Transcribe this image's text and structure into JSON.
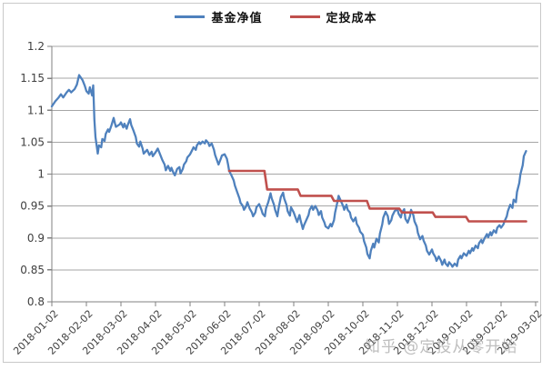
{
  "watermark": "知乎 @定投从零开始",
  "chart_data": {
    "type": "line",
    "title": "",
    "xlabel": "",
    "ylabel": "",
    "ylim": [
      0.8,
      1.2
    ],
    "x_range": [
      "2018-01-02",
      "2019-03-02"
    ],
    "grid": "horizontal",
    "grid_color": "#a6a6a6",
    "axis_color": "#808080",
    "tick_label_color": "#3f3f3f",
    "legend_position": "top-center",
    "x_tick_labels_rotated_45": true,
    "y_ticks": [
      {
        "v": 0.8,
        "label": "0.8"
      },
      {
        "v": 0.85,
        "label": "0.85"
      },
      {
        "v": 0.9,
        "label": "0.9"
      },
      {
        "v": 0.95,
        "label": "0.95"
      },
      {
        "v": 1.0,
        "label": "1"
      },
      {
        "v": 1.05,
        "label": "1.05"
      },
      {
        "v": 1.1,
        "label": "1.1"
      },
      {
        "v": 1.15,
        "label": "1.15"
      },
      {
        "v": 1.2,
        "label": "1.2"
      }
    ],
    "x_ticks": [
      "2018-01-02",
      "2018-02-02",
      "2018-03-02",
      "2018-04-02",
      "2018-05-02",
      "2018-06-02",
      "2018-07-02",
      "2018-08-02",
      "2018-09-02",
      "2018-10-02",
      "2018-11-02",
      "2018-12-02",
      "2019-01-02",
      "2019-02-02",
      "2019-03-02"
    ],
    "series": [
      {
        "name": "基金净值",
        "color": "#4f81bd",
        "style": "line",
        "points": [
          [
            "2018-01-02",
            1.106
          ],
          [
            "2018-01-05",
            1.114
          ],
          [
            "2018-01-08",
            1.12
          ],
          [
            "2018-01-10",
            1.125
          ],
          [
            "2018-01-12",
            1.12
          ],
          [
            "2018-01-15",
            1.128
          ],
          [
            "2018-01-17",
            1.132
          ],
          [
            "2018-01-19",
            1.128
          ],
          [
            "2018-01-22",
            1.133
          ],
          [
            "2018-01-24",
            1.14
          ],
          [
            "2018-01-26",
            1.155
          ],
          [
            "2018-01-29",
            1.147
          ],
          [
            "2018-01-31",
            1.138
          ],
          [
            "2018-02-02",
            1.13
          ],
          [
            "2018-02-04",
            1.126
          ],
          [
            "2018-02-05",
            1.136
          ],
          [
            "2018-02-07",
            1.123
          ],
          [
            "2018-02-08",
            1.139
          ],
          [
            "2018-02-09",
            1.085
          ],
          [
            "2018-02-10",
            1.058
          ],
          [
            "2018-02-12",
            1.032
          ],
          [
            "2018-02-13",
            1.045
          ],
          [
            "2018-02-15",
            1.042
          ],
          [
            "2018-02-16",
            1.055
          ],
          [
            "2018-02-18",
            1.052
          ],
          [
            "2018-02-19",
            1.063
          ],
          [
            "2018-02-21",
            1.07
          ],
          [
            "2018-02-22",
            1.066
          ],
          [
            "2018-02-24",
            1.076
          ],
          [
            "2018-02-26",
            1.088
          ],
          [
            "2018-02-27",
            1.08
          ],
          [
            "2018-02-28",
            1.074
          ],
          [
            "2018-03-01",
            1.078
          ],
          [
            "2018-03-02",
            1.081
          ],
          [
            "2018-03-04",
            1.073
          ],
          [
            "2018-03-05",
            1.079
          ],
          [
            "2018-03-07",
            1.071
          ],
          [
            "2018-03-08",
            1.077
          ],
          [
            "2018-03-10",
            1.086
          ],
          [
            "2018-03-11",
            1.077
          ],
          [
            "2018-03-13",
            1.068
          ],
          [
            "2018-03-15",
            1.058
          ],
          [
            "2018-03-16",
            1.048
          ],
          [
            "2018-03-18",
            1.043
          ],
          [
            "2018-03-19",
            1.051
          ],
          [
            "2018-03-21",
            1.04
          ],
          [
            "2018-03-22",
            1.032
          ],
          [
            "2018-03-25",
            1.038
          ],
          [
            "2018-03-27",
            1.03
          ],
          [
            "2018-03-29",
            1.035
          ],
          [
            "2018-03-30",
            1.028
          ],
          [
            "2018-04-02",
            1.034
          ],
          [
            "2018-04-04",
            1.04
          ],
          [
            "2018-04-06",
            1.031
          ],
          [
            "2018-04-08",
            1.022
          ],
          [
            "2018-04-10",
            1.015
          ],
          [
            "2018-04-11",
            1.006
          ],
          [
            "2018-04-13",
            1.013
          ],
          [
            "2018-04-15",
            1.005
          ],
          [
            "2018-04-16",
            1.01
          ],
          [
            "2018-04-18",
            1.001
          ],
          [
            "2018-04-19",
            0.998
          ],
          [
            "2018-04-21",
            1.008
          ],
          [
            "2018-04-23",
            1.011
          ],
          [
            "2018-04-24",
            1.001
          ],
          [
            "2018-04-26",
            1.008
          ],
          [
            "2018-04-27",
            1.015
          ],
          [
            "2018-04-29",
            1.02
          ],
          [
            "2018-04-30",
            1.026
          ],
          [
            "2018-05-02",
            1.031
          ],
          [
            "2018-05-04",
            1.038
          ],
          [
            "2018-05-05",
            1.042
          ],
          [
            "2018-05-07",
            1.038
          ],
          [
            "2018-05-08",
            1.045
          ],
          [
            "2018-05-10",
            1.05
          ],
          [
            "2018-05-11",
            1.047
          ],
          [
            "2018-05-13",
            1.051
          ],
          [
            "2018-05-15",
            1.048
          ],
          [
            "2018-05-16",
            1.053
          ],
          [
            "2018-05-18",
            1.049
          ],
          [
            "2018-05-19",
            1.044
          ],
          [
            "2018-05-21",
            1.048
          ],
          [
            "2018-05-23",
            1.038
          ],
          [
            "2018-05-24",
            1.03
          ],
          [
            "2018-05-26",
            1.02
          ],
          [
            "2018-05-27",
            1.015
          ],
          [
            "2018-05-29",
            1.024
          ],
          [
            "2018-05-30",
            1.029
          ],
          [
            "2018-06-02",
            1.031
          ],
          [
            "2018-06-04",
            1.024
          ],
          [
            "2018-06-05",
            1.015
          ],
          [
            "2018-06-06",
            1.005
          ],
          [
            "2018-06-08",
            0.998
          ],
          [
            "2018-06-10",
            0.99
          ],
          [
            "2018-06-11",
            0.982
          ],
          [
            "2018-06-13",
            0.972
          ],
          [
            "2018-06-15",
            0.962
          ],
          [
            "2018-06-16",
            0.955
          ],
          [
            "2018-06-18",
            0.95
          ],
          [
            "2018-06-19",
            0.944
          ],
          [
            "2018-06-21",
            0.95
          ],
          [
            "2018-06-22",
            0.956
          ],
          [
            "2018-06-24",
            0.946
          ],
          [
            "2018-06-26",
            0.94
          ],
          [
            "2018-06-27",
            0.934
          ],
          [
            "2018-06-29",
            0.94
          ],
          [
            "2018-06-30",
            0.948
          ],
          [
            "2018-07-02",
            0.953
          ],
          [
            "2018-07-04",
            0.944
          ],
          [
            "2018-07-05",
            0.938
          ],
          [
            "2018-07-07",
            0.934
          ],
          [
            "2018-07-08",
            0.946
          ],
          [
            "2018-07-10",
            0.956
          ],
          [
            "2018-07-12",
            0.97
          ],
          [
            "2018-07-13",
            0.962
          ],
          [
            "2018-07-15",
            0.952
          ],
          [
            "2018-07-16",
            0.944
          ],
          [
            "2018-07-18",
            0.934
          ],
          [
            "2018-07-19",
            0.946
          ],
          [
            "2018-07-21",
            0.964
          ],
          [
            "2018-07-23",
            0.971
          ],
          [
            "2018-07-24",
            0.962
          ],
          [
            "2018-07-26",
            0.952
          ],
          [
            "2018-07-27",
            0.942
          ],
          [
            "2018-07-29",
            0.935
          ],
          [
            "2018-07-30",
            0.948
          ],
          [
            "2018-08-02",
            0.94
          ],
          [
            "2018-08-04",
            0.93
          ],
          [
            "2018-08-05",
            0.925
          ],
          [
            "2018-08-07",
            0.936
          ],
          [
            "2018-08-08",
            0.928
          ],
          [
            "2018-08-10",
            0.914
          ],
          [
            "2018-08-11",
            0.92
          ],
          [
            "2018-08-13",
            0.928
          ],
          [
            "2018-08-15",
            0.936
          ],
          [
            "2018-08-16",
            0.944
          ],
          [
            "2018-08-18",
            0.95
          ],
          [
            "2018-08-19",
            0.944
          ],
          [
            "2018-08-21",
            0.95
          ],
          [
            "2018-08-23",
            0.943
          ],
          [
            "2018-08-24",
            0.936
          ],
          [
            "2018-08-26",
            0.942
          ],
          [
            "2018-08-27",
            0.932
          ],
          [
            "2018-08-29",
            0.924
          ],
          [
            "2018-08-30",
            0.918
          ],
          [
            "2018-09-02",
            0.915
          ],
          [
            "2018-09-04",
            0.922
          ],
          [
            "2018-09-05",
            0.918
          ],
          [
            "2018-09-07",
            0.928
          ],
          [
            "2018-09-08",
            0.94
          ],
          [
            "2018-09-10",
            0.956
          ],
          [
            "2018-09-11",
            0.966
          ],
          [
            "2018-09-13",
            0.958
          ],
          [
            "2018-09-15",
            0.95
          ],
          [
            "2018-09-16",
            0.944
          ],
          [
            "2018-09-18",
            0.952
          ],
          [
            "2018-09-19",
            0.944
          ],
          [
            "2018-09-21",
            0.94
          ],
          [
            "2018-09-22",
            0.932
          ],
          [
            "2018-09-24",
            0.926
          ],
          [
            "2018-09-26",
            0.932
          ],
          [
            "2018-09-27",
            0.922
          ],
          [
            "2018-09-29",
            0.916
          ],
          [
            "2018-09-30",
            0.91
          ],
          [
            "2018-10-02",
            0.905
          ],
          [
            "2018-10-03",
            0.895
          ],
          [
            "2018-10-05",
            0.885
          ],
          [
            "2018-10-06",
            0.875
          ],
          [
            "2018-10-08",
            0.868
          ],
          [
            "2018-10-09",
            0.88
          ],
          [
            "2018-10-11",
            0.891
          ],
          [
            "2018-10-12",
            0.885
          ],
          [
            "2018-10-14",
            0.899
          ],
          [
            "2018-10-16",
            0.893
          ],
          [
            "2018-10-17",
            0.907
          ],
          [
            "2018-10-19",
            0.921
          ],
          [
            "2018-10-20",
            0.932
          ],
          [
            "2018-10-22",
            0.941
          ],
          [
            "2018-10-24",
            0.934
          ],
          [
            "2018-10-25",
            0.922
          ],
          [
            "2018-10-27",
            0.928
          ],
          [
            "2018-10-28",
            0.935
          ],
          [
            "2018-10-30",
            0.942
          ],
          [
            "2018-11-02",
            0.945
          ],
          [
            "2018-11-03",
            0.938
          ],
          [
            "2018-11-05",
            0.932
          ],
          [
            "2018-11-06",
            0.94
          ],
          [
            "2018-11-08",
            0.945
          ],
          [
            "2018-11-09",
            0.93
          ],
          [
            "2018-11-11",
            0.924
          ],
          [
            "2018-11-13",
            0.934
          ],
          [
            "2018-11-14",
            0.944
          ],
          [
            "2018-11-16",
            0.936
          ],
          [
            "2018-11-17",
            0.926
          ],
          [
            "2018-11-19",
            0.918
          ],
          [
            "2018-11-20",
            0.908
          ],
          [
            "2018-11-22",
            0.898
          ],
          [
            "2018-11-24",
            0.903
          ],
          [
            "2018-11-25",
            0.896
          ],
          [
            "2018-11-27",
            0.888
          ],
          [
            "2018-11-28",
            0.88
          ],
          [
            "2018-11-30",
            0.874
          ],
          [
            "2018-12-02",
            0.882
          ],
          [
            "2018-12-03",
            0.876
          ],
          [
            "2018-12-05",
            0.87
          ],
          [
            "2018-12-06",
            0.864
          ],
          [
            "2018-12-08",
            0.871
          ],
          [
            "2018-12-10",
            0.864
          ],
          [
            "2018-12-11",
            0.858
          ],
          [
            "2018-12-13",
            0.866
          ],
          [
            "2018-12-14",
            0.86
          ],
          [
            "2018-12-16",
            0.856
          ],
          [
            "2018-12-17",
            0.862
          ],
          [
            "2018-12-19",
            0.858
          ],
          [
            "2018-12-20",
            0.855
          ],
          [
            "2018-12-22",
            0.86
          ],
          [
            "2018-12-24",
            0.856
          ],
          [
            "2018-12-25",
            0.866
          ],
          [
            "2018-12-27",
            0.872
          ],
          [
            "2018-12-28",
            0.868
          ],
          [
            "2018-12-30",
            0.876
          ],
          [
            "2019-01-02",
            0.872
          ],
          [
            "2019-01-04",
            0.88
          ],
          [
            "2019-01-05",
            0.876
          ],
          [
            "2019-01-07",
            0.884
          ],
          [
            "2019-01-08",
            0.88
          ],
          [
            "2019-01-10",
            0.888
          ],
          [
            "2019-01-12",
            0.884
          ],
          [
            "2019-01-13",
            0.892
          ],
          [
            "2019-01-15",
            0.897
          ],
          [
            "2019-01-16",
            0.892
          ],
          [
            "2019-01-18",
            0.9
          ],
          [
            "2019-01-20",
            0.906
          ],
          [
            "2019-01-21",
            0.901
          ],
          [
            "2019-01-23",
            0.909
          ],
          [
            "2019-01-24",
            0.904
          ],
          [
            "2019-01-26",
            0.912
          ],
          [
            "2019-01-28",
            0.908
          ],
          [
            "2019-01-29",
            0.916
          ],
          [
            "2019-01-31",
            0.92
          ],
          [
            "2019-02-02",
            0.916
          ],
          [
            "2019-02-04",
            0.921
          ],
          [
            "2019-02-05",
            0.926
          ],
          [
            "2019-02-07",
            0.934
          ],
          [
            "2019-02-08",
            0.942
          ],
          [
            "2019-02-10",
            0.952
          ],
          [
            "2019-02-12",
            0.947
          ],
          [
            "2019-02-13",
            0.96
          ],
          [
            "2019-02-15",
            0.956
          ],
          [
            "2019-02-16",
            0.972
          ],
          [
            "2019-02-18",
            0.986
          ],
          [
            "2019-02-19",
            1.0
          ],
          [
            "2019-02-21",
            1.014
          ],
          [
            "2019-02-22",
            1.028
          ],
          [
            "2019-02-24",
            1.036
          ]
        ]
      },
      {
        "name": "定投成本",
        "color": "#c0504d",
        "style": "step",
        "points": [
          [
            "2018-06-06",
            1.005
          ],
          [
            "2018-07-09",
            0.976
          ],
          [
            "2018-08-08",
            0.966
          ],
          [
            "2018-09-07",
            0.958
          ],
          [
            "2018-10-08",
            0.946
          ],
          [
            "2018-11-06",
            0.94
          ],
          [
            "2018-12-05",
            0.933
          ],
          [
            "2019-01-04",
            0.926
          ],
          [
            "2019-02-24",
            0.926
          ]
        ]
      }
    ]
  }
}
